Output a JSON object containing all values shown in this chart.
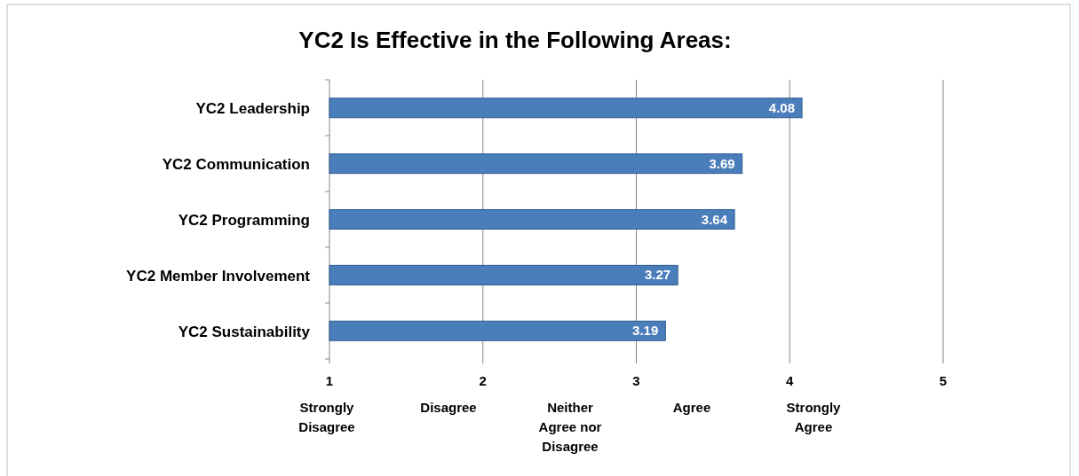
{
  "chart_data": {
    "type": "bar",
    "orientation": "horizontal",
    "title": "YC2 Is Effective in the Following Areas:",
    "categories": [
      "YC2 Leadership",
      "YC2 Communication",
      "YC2 Programming",
      "YC2 Member Involvement",
      "YC2 Sustainability"
    ],
    "values": [
      4.08,
      3.69,
      3.64,
      3.27,
      3.19
    ],
    "color": "#4a7ebb",
    "xlim": [
      1,
      5
    ],
    "xticks": [
      1,
      2,
      3,
      4,
      5
    ],
    "grid": "x",
    "data_labels": true,
    "annotations": [
      "Strongly Disagree",
      "Disagree",
      "Neither Agree nor Disagree",
      "Agree",
      "Strongly Agree"
    ]
  }
}
